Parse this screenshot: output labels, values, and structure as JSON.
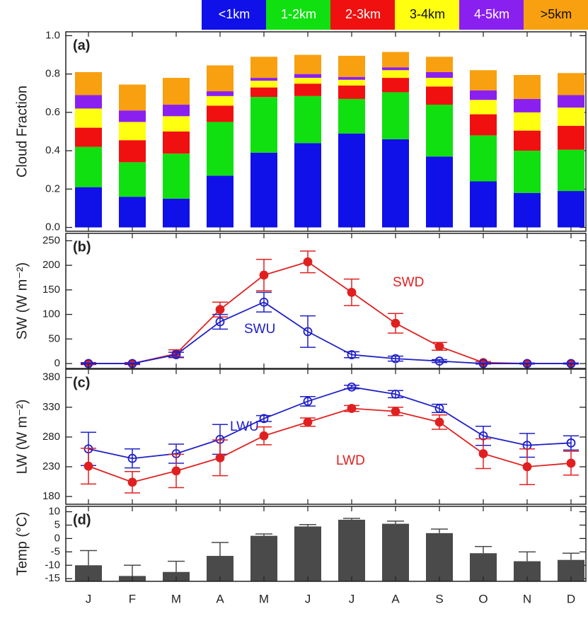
{
  "chart_data": [
    {
      "type": "bar",
      "stacked": true,
      "panel_label": "(a)",
      "y_label": "Cloud Fraction",
      "ylim": [
        -0.02,
        1.02
      ],
      "yticks": [
        {
          "value": 0,
          "label": "0.0"
        },
        0.2,
        0.4,
        0.6,
        0.8,
        {
          "value": 1,
          "label": "1.0"
        }
      ],
      "legend": "top-right",
      "series": [
        {
          "name": "<1km",
          "color": "#1010e8",
          "values": [
            0.21,
            0.16,
            0.15,
            0.27,
            0.39,
            0.44,
            0.49,
            0.46,
            0.37,
            0.24,
            0.18,
            0.19
          ]
        },
        {
          "name": "1-2km",
          "color": "#10e010",
          "values": [
            0.21,
            0.18,
            0.235,
            0.28,
            0.29,
            0.245,
            0.18,
            0.245,
            0.27,
            0.24,
            0.22,
            0.215
          ]
        },
        {
          "name": "2-3km",
          "color": "#f01010",
          "values": [
            0.1,
            0.115,
            0.115,
            0.085,
            0.05,
            0.065,
            0.07,
            0.075,
            0.095,
            0.11,
            0.105,
            0.125
          ]
        },
        {
          "name": "3-4km",
          "color": "#ffff10",
          "values": [
            0.1,
            0.095,
            0.08,
            0.05,
            0.035,
            0.03,
            0.03,
            0.04,
            0.045,
            0.075,
            0.095,
            0.095
          ]
        },
        {
          "name": "4-5km",
          "color": "#8a20f0",
          "values": [
            0.07,
            0.06,
            0.06,
            0.025,
            0.015,
            0.02,
            0.015,
            0.015,
            0.03,
            0.05,
            0.07,
            0.065
          ]
        },
        {
          "name": ">5km",
          "color": "#f8a010",
          "values": [
            0.12,
            0.135,
            0.14,
            0.135,
            0.11,
            0.1,
            0.11,
            0.08,
            0.08,
            0.105,
            0.125,
            0.115
          ]
        }
      ]
    },
    {
      "type": "line",
      "panel_label": "(b)",
      "y_label": "SW (W m⁻²)",
      "ylim": [
        -10,
        265
      ],
      "yticks": [
        0,
        50,
        100,
        150,
        200,
        250
      ],
      "series": [
        {
          "name": "SWD",
          "color": "#e02020",
          "marker": "filled",
          "values": [
            0,
            0,
            20,
            110,
            180,
            207,
            145,
            82,
            35,
            2,
            0,
            0
          ],
          "errors": [
            2,
            2,
            8,
            15,
            32,
            22,
            27,
            20,
            8,
            2,
            1,
            1
          ]
        },
        {
          "name": "SWU",
          "color": "#2020c8",
          "marker": "open",
          "values": [
            0,
            0,
            18,
            85,
            125,
            65,
            18,
            10,
            5,
            0,
            0,
            0
          ],
          "errors": [
            1,
            1,
            5,
            15,
            20,
            32,
            6,
            5,
            3,
            1,
            1,
            1
          ]
        }
      ]
    },
    {
      "type": "line",
      "panel_label": "(c)",
      "y_label": "LW (W m⁻²)",
      "ylim": [
        167,
        394
      ],
      "yticks": [
        180,
        230,
        280,
        330,
        380
      ],
      "series": [
        {
          "name": "LWU",
          "color": "#2020c8",
          "marker": "open",
          "values": [
            260,
            244,
            252,
            276,
            311,
            340,
            364,
            352,
            328,
            282,
            266,
            270
          ],
          "errors": [
            28,
            16,
            16,
            25,
            5,
            8,
            3,
            6,
            7,
            16,
            20,
            12
          ]
        },
        {
          "name": "LWD",
          "color": "#e02020",
          "marker": "filled",
          "values": [
            231,
            204,
            223,
            245,
            282,
            305,
            328,
            323,
            305,
            252,
            230,
            236
          ],
          "errors": [
            30,
            18,
            28,
            30,
            15,
            7,
            5,
            7,
            12,
            25,
            30,
            20
          ]
        }
      ]
    },
    {
      "type": "bar",
      "stacked": false,
      "panel_label": "(d)",
      "y_label": "Temp (°C)",
      "ylim": [
        -16,
        12
      ],
      "yticks": [
        10,
        5,
        0,
        -5,
        -10,
        -15
      ],
      "color": "#4a4a4a",
      "categories": [
        "J",
        "F",
        "M",
        "A",
        "M",
        "J",
        "J",
        "A",
        "S",
        "O",
        "N",
        "D"
      ],
      "values": [
        -10,
        -14,
        -12.5,
        -6.5,
        1,
        4.5,
        7,
        5.5,
        2,
        -5.5,
        -8.5,
        -8
      ],
      "errors": [
        5.5,
        4,
        4,
        5,
        0.7,
        0.7,
        0.5,
        1,
        1.5,
        2.5,
        3.5,
        2.5
      ]
    }
  ]
}
